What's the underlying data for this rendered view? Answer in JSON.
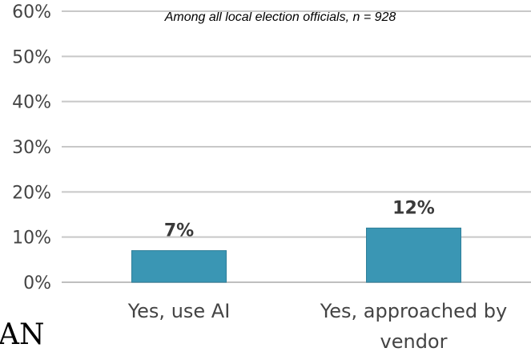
{
  "chart_data": {
    "type": "bar",
    "title": "",
    "subtitle": "Among all local election officials, n = 928",
    "categories": [
      "Yes, use AI",
      "Yes, approached by vendor"
    ],
    "category_lines": [
      [
        "Yes, use AI"
      ],
      [
        "Yes, approached by",
        "vendor"
      ]
    ],
    "values": [
      7,
      12
    ],
    "data_labels": [
      "7%",
      "12%"
    ],
    "xlabel": "",
    "ylabel": "",
    "ylim": [
      0,
      60
    ],
    "yticks": [
      "0%",
      "10%",
      "20%",
      "30%",
      "40%",
      "50%",
      "60%"
    ],
    "grid": true,
    "colors": {
      "bar": "#3a96b4",
      "grid": "#c8c8c8",
      "axis": "#bfbfbf"
    }
  },
  "cropped_text": {
    "corner_fragment": "AN"
  }
}
